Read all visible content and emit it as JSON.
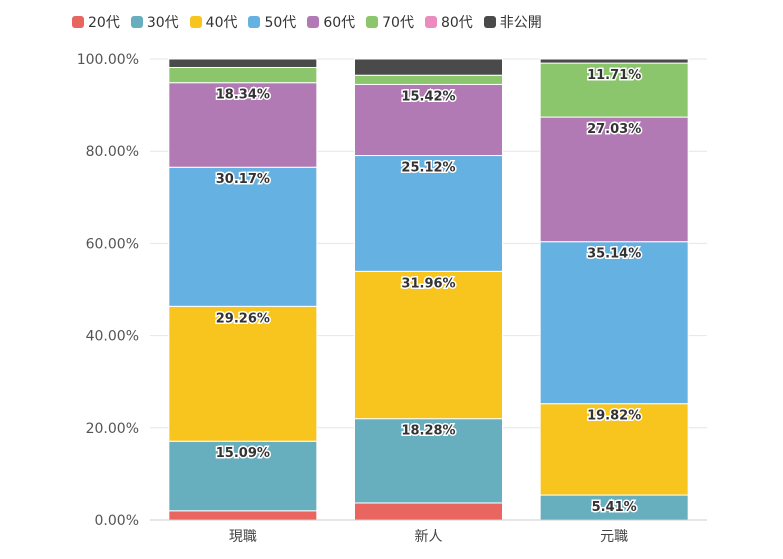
{
  "chart_data": {
    "type": "bar",
    "stacked": true,
    "categories": [
      "現職",
      "新人",
      "元職"
    ],
    "series": [
      {
        "name": "20代",
        "color": "#e8665f",
        "values": [
          2.0,
          3.7,
          0
        ]
      },
      {
        "name": "30代",
        "color": "#67aebe",
        "values": [
          15.09,
          18.28,
          5.41
        ]
      },
      {
        "name": "40代",
        "color": "#f8c41e",
        "values": [
          29.26,
          31.96,
          19.82
        ]
      },
      {
        "name": "50代",
        "color": "#65b1e1",
        "values": [
          30.17,
          25.12,
          35.14
        ]
      },
      {
        "name": "60代",
        "color": "#b27ab5",
        "values": [
          18.34,
          15.42,
          27.03
        ]
      },
      {
        "name": "70代",
        "color": "#8bc66c",
        "values": [
          3.3,
          2.0,
          11.71
        ]
      },
      {
        "name": "80代",
        "color": "#ea8cc0",
        "values": [
          0,
          0,
          0
        ]
      },
      {
        "name": "非公開",
        "color": "#4a4a4a",
        "values": [
          1.84,
          3.52,
          0.89
        ]
      }
    ],
    "data_labels": [
      {
        "category": "現職",
        "series": "30代",
        "text": "15.09%"
      },
      {
        "category": "現職",
        "series": "40代",
        "text": "29.26%"
      },
      {
        "category": "現職",
        "series": "50代",
        "text": "30.17%"
      },
      {
        "category": "現職",
        "series": "60代",
        "text": "18.34%"
      },
      {
        "category": "新人",
        "series": "30代",
        "text": "18.28%"
      },
      {
        "category": "新人",
        "series": "40代",
        "text": "31.96%"
      },
      {
        "category": "新人",
        "series": "50代",
        "text": "25.12%"
      },
      {
        "category": "新人",
        "series": "60代",
        "text": "15.42%"
      },
      {
        "category": "元職",
        "series": "30代",
        "text": "5.41%"
      },
      {
        "category": "元職",
        "series": "40代",
        "text": "19.82%"
      },
      {
        "category": "元職",
        "series": "50代",
        "text": "35.14%"
      },
      {
        "category": "元職",
        "series": "60代",
        "text": "27.03%"
      },
      {
        "category": "元職",
        "series": "70代",
        "text": "11.71%"
      }
    ],
    "y_ticks": [
      "0.00%",
      "20.00%",
      "40.00%",
      "60.00%",
      "80.00%",
      "100.00%"
    ],
    "ylim": [
      0,
      100
    ],
    "grid": true,
    "legend_position": "top-left",
    "title": "",
    "xlabel": "",
    "ylabel": ""
  }
}
